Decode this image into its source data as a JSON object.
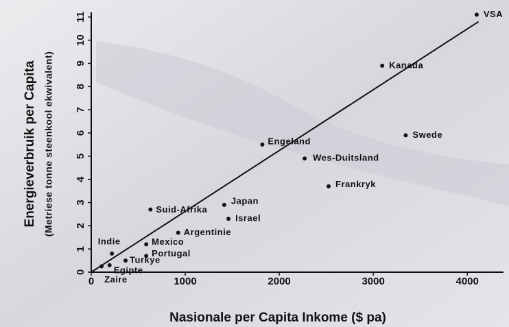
{
  "chart_data": {
    "type": "scatter",
    "y_label": "Energieverbruik per Capita",
    "y_sublabel": "(Metriese tonne steenkool ekwivalent)",
    "x_label": "Nasionale per Capita Inkome ($ pa)",
    "xlim": [
      0,
      4400
    ],
    "ylim": [
      0,
      11.2
    ],
    "xticks": [
      0,
      1000,
      2000,
      3000,
      4000
    ],
    "yticks": [
      0,
      1,
      2,
      3,
      4,
      5,
      6,
      7,
      8,
      9,
      10,
      11
    ],
    "color": "#111111",
    "series": [
      {
        "labels": [
          "VSA",
          "Kanada",
          "Swede",
          "Engeland",
          "Wes-Duitsland",
          "Frankryk",
          "Japan",
          "Israel",
          "Suid-Afrika",
          "Argentinie",
          "Mexico",
          "Portugal",
          "Turkye",
          "Egipte",
          "Zaire",
          "Indie"
        ],
        "x": [
          4100,
          3095,
          3345,
          1820,
          2270,
          2525,
          1415,
          1460,
          630,
          925,
          585,
          585,
          365,
          195,
          110,
          220
        ],
        "values": [
          11.1,
          8.9,
          5.9,
          5.5,
          4.9,
          3.7,
          2.9,
          2.3,
          2.7,
          1.7,
          1.2,
          0.7,
          0.5,
          0.3,
          0.25,
          0.8
        ]
      }
    ],
    "trend_line": {
      "x": [
        0,
        4120
      ],
      "values": [
        0,
        10.8
      ]
    }
  }
}
